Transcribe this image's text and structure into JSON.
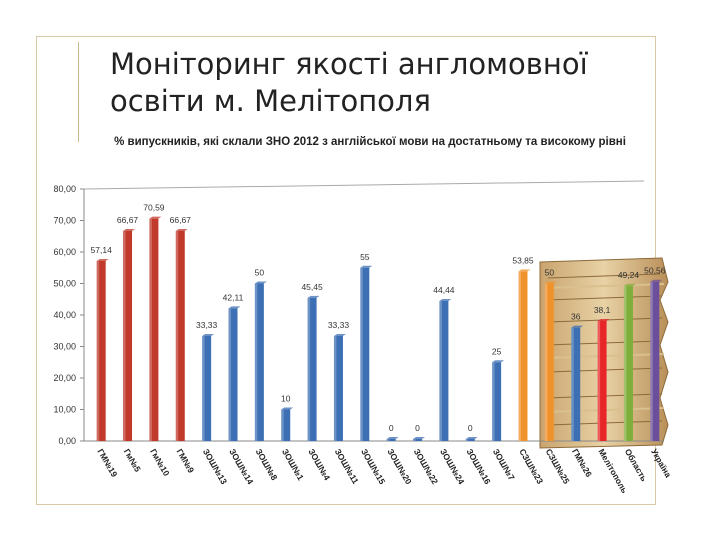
{
  "slide": {
    "title_line1": "Моніторинг якості англомовної",
    "title_line2": "освіти м. Мелітополя"
  },
  "chart_data": {
    "type": "bar",
    "title": "% випускників, які склали ЗНО 2012 з англійської мови на достатньому та високому рівні",
    "xlabel": "",
    "ylabel": "",
    "ylim": [
      0,
      80
    ],
    "yticks": [
      "0,00",
      "10,00",
      "20,00",
      "30,00",
      "40,00",
      "50,00",
      "60,00",
      "70,00",
      "80,00"
    ],
    "grid": false,
    "legend": "none",
    "categories": [
      "ГМ№19",
      "Гм№5",
      "Гм№10",
      "ГМ№9",
      "ЗОШ№13",
      "ЗОШ№14",
      "ЗОШ№8",
      "ЗОШ№1",
      "ЗОШ№4",
      "ЗОШ№11",
      "ЗОШ№15",
      "ЗОШ№20",
      "ЗОШ№22",
      "ЗОШ№24",
      "ЗОШ№16",
      "ЗОШ№7",
      "СЗШ№23",
      "СЗШ№25",
      "ГМ№26",
      "Мелітополь",
      "Область",
      "Україна"
    ],
    "values": [
      57.14,
      66.67,
      70.59,
      66.67,
      33.33,
      42.11,
      50,
      10,
      45.45,
      33.33,
      55,
      0,
      0,
      44.44,
      0,
      25,
      53.85,
      50,
      36,
      38.1,
      49.24,
      50.56
    ],
    "labels": [
      "57,14",
      "66,67",
      "70,59",
      "66,67",
      "33,33",
      "42,11",
      "50",
      "10",
      "45,45",
      "33,33",
      "55",
      "0",
      "0",
      "44,44",
      "0",
      "25",
      "53,85",
      "50",
      "36",
      "38,1",
      "49,24",
      "50,56"
    ],
    "bar_colors": [
      "#c0392b",
      "#c0392b",
      "#c0392b",
      "#c0392b",
      "#3c6fb3",
      "#3c6fb3",
      "#3c6fb3",
      "#3c6fb3",
      "#3c6fb3",
      "#3c6fb3",
      "#3c6fb3",
      "#3c6fb3",
      "#3c6fb3",
      "#3c6fb3",
      "#3c6fb3",
      "#3c6fb3",
      "#f0922b",
      "#f0922b",
      "#3c6fb3",
      "#e8262a",
      "#7fae3a",
      "#6b4f9a"
    ]
  }
}
